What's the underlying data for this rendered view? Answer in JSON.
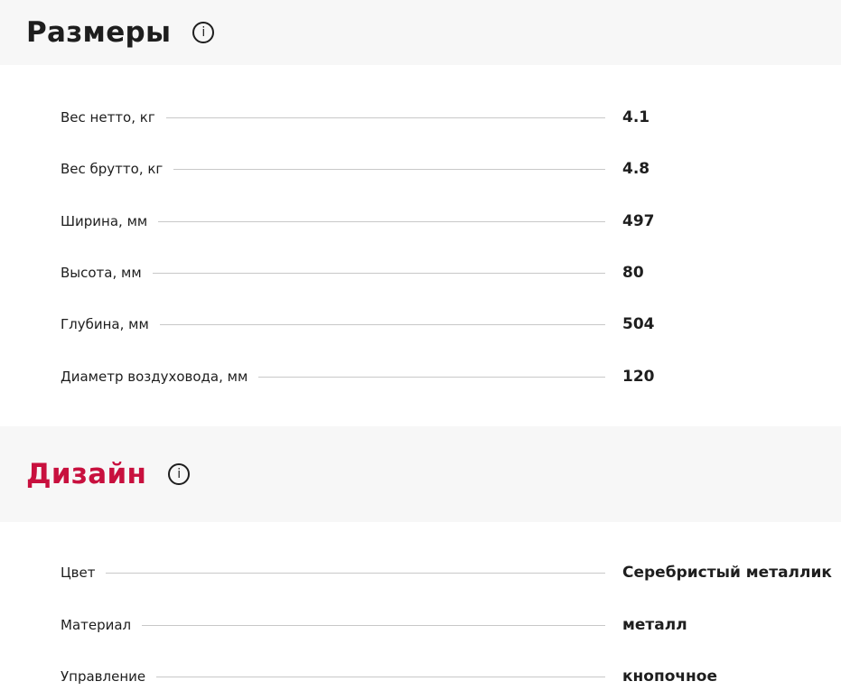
{
  "sections": [
    {
      "title": "Размеры",
      "title_color": "#1e1e1e",
      "info_icon": "info-circle-icon",
      "rows": [
        {
          "label": "Вес нетто, кг",
          "value": "4.1"
        },
        {
          "label": "Вес брутто, кг",
          "value": "4.8"
        },
        {
          "label": "Ширина, мм",
          "value": "497"
        },
        {
          "label": "Высота, мм",
          "value": "80"
        },
        {
          "label": "Глубина, мм",
          "value": "504"
        },
        {
          "label": "Диаметр воздуховода, мм",
          "value": "120"
        }
      ]
    },
    {
      "title": "Дизайн",
      "title_color": "#c8103e",
      "info_icon": "info-circle-icon",
      "rows": [
        {
          "label": "Цвет",
          "value": "Серебристый металлик"
        },
        {
          "label": "Материал",
          "value": "металл"
        },
        {
          "label": "Управление",
          "value": "кнопочное"
        }
      ]
    }
  ]
}
